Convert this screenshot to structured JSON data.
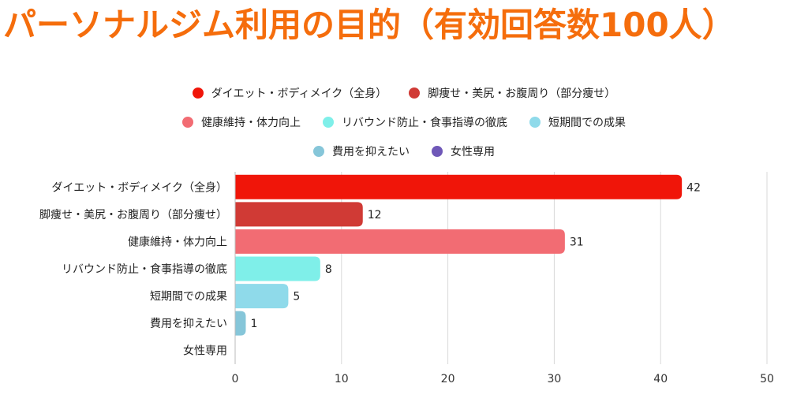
{
  "title": "パーソナルジム利用の目的（有効回答数100人）",
  "colors": {
    "title": "#f56d0c",
    "grid": "#d9d9d9"
  },
  "chart_data": {
    "type": "bar",
    "orientation": "horizontal",
    "title": "パーソナルジム利用の目的（有効回答数100人）",
    "categories": [
      "ダイエット・ボディメイク（全身）",
      "脚痩せ・美尻・お腹周り（部分痩せ）",
      "健康維持・体力向上",
      "リバウンド防止・食事指導の徹底",
      "短期間での成果",
      "費用を抑えたい",
      "女性専用"
    ],
    "values": [
      42,
      12,
      31,
      8,
      5,
      1,
      0
    ],
    "value_labels": [
      "42",
      "12",
      "31",
      "8",
      "5",
      "1",
      ""
    ],
    "colors": [
      "#f01509",
      "#d03a35",
      "#f26c73",
      "#7fefe9",
      "#8fdaea",
      "#86c6d9",
      "#6f58b8"
    ],
    "xlim": [
      0,
      50
    ],
    "xticks": [
      0,
      10,
      20,
      30,
      40,
      50
    ],
    "grid": true,
    "legend": {
      "placement": "top-center",
      "rows": [
        [
          0,
          1
        ],
        [
          2,
          3,
          4
        ],
        [
          5,
          6
        ]
      ]
    }
  }
}
